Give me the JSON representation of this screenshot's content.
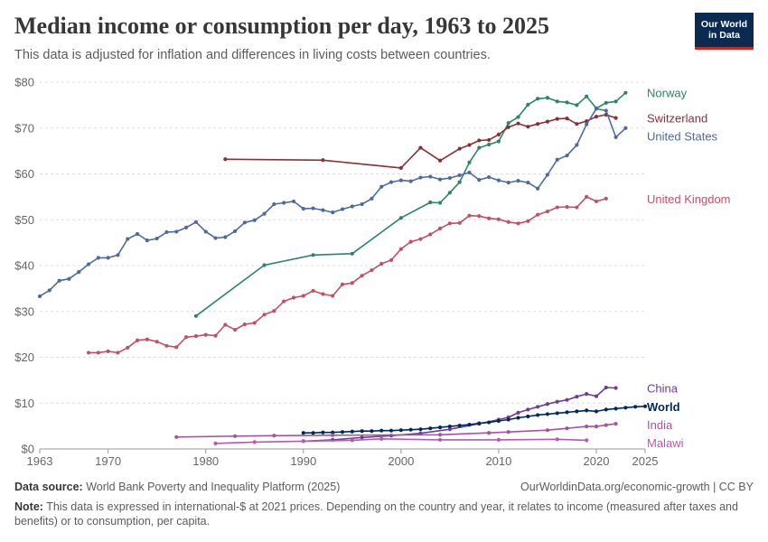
{
  "header": {
    "title": "Median income or consumption per day, 1963 to 2025",
    "subtitle": "This data is adjusted for inflation and differences in living costs between countries.",
    "logo_line1": "Our World",
    "logo_line2": "in Data"
  },
  "footer": {
    "source_label": "Data source:",
    "source_text": "World Bank Poverty and Inequality Platform (2025)",
    "url_text": "OurWorldinData.org/economic-growth | CC BY",
    "note_label": "Note:",
    "note_text": "This data is expressed in international-$ at 2021 prices. Depending on the country and year, it relates to income (measured after taxes and benefits) or to consumption, per capita."
  },
  "chart_data": {
    "type": "line",
    "xlim": [
      1963,
      2025
    ],
    "ylim": [
      0,
      80
    ],
    "x_ticks": [
      1963,
      1970,
      1980,
      1990,
      2000,
      2010,
      2020,
      2025
    ],
    "y_ticks": [
      0,
      10,
      20,
      30,
      40,
      50,
      60,
      70,
      80
    ],
    "y_tick_labels": [
      "$0",
      "$10",
      "$20",
      "$30",
      "$40",
      "$50",
      "$60",
      "$70",
      "$80"
    ],
    "grid": "horizontal-dashed",
    "series": [
      {
        "name": "Norway",
        "color": "#2c8465",
        "x": [
          1979,
          1986,
          1991,
          1995,
          2000,
          2003,
          2004,
          2005,
          2006,
          2007,
          2008,
          2009,
          2010,
          2011,
          2012,
          2013,
          2014,
          2015,
          2016,
          2017,
          2018,
          2019,
          2020,
          2021,
          2022,
          2023
        ],
        "y": [
          29.0,
          40.1,
          42.3,
          42.6,
          50.4,
          53.8,
          53.7,
          55.9,
          58.2,
          62.5,
          65.7,
          66.4,
          67.1,
          71.1,
          72.4,
          75.1,
          76.4,
          76.6,
          75.8,
          75.6,
          75.0,
          76.9,
          74.3,
          75.5,
          75.8,
          77.7
        ]
      },
      {
        "name": "Switzerland",
        "color": "#883039",
        "x": [
          1982,
          1992,
          2000,
          2002,
          2004,
          2006,
          2007,
          2008,
          2009,
          2010,
          2011,
          2012,
          2013,
          2014,
          2015,
          2016,
          2017,
          2018,
          2019,
          2020,
          2021,
          2022
        ],
        "y": [
          63.2,
          63.0,
          61.3,
          65.7,
          62.9,
          65.5,
          66.3,
          67.3,
          67.4,
          68.6,
          70.2,
          71.0,
          70.3,
          70.9,
          71.4,
          72.0,
          72.1,
          70.9,
          71.5,
          72.5,
          72.9,
          72.2
        ]
      },
      {
        "name": "United States",
        "color": "#4c6a9c",
        "x": [
          1963,
          1964,
          1965,
          1966,
          1967,
          1968,
          1969,
          1970,
          1971,
          1972,
          1973,
          1974,
          1975,
          1976,
          1977,
          1978,
          1979,
          1980,
          1981,
          1982,
          1983,
          1984,
          1985,
          1986,
          1987,
          1988,
          1989,
          1990,
          1991,
          1992,
          1993,
          1994,
          1995,
          1996,
          1997,
          1998,
          1999,
          2000,
          2001,
          2002,
          2003,
          2004,
          2005,
          2006,
          2007,
          2008,
          2009,
          2010,
          2011,
          2012,
          2013,
          2014,
          2015,
          2016,
          2017,
          2018,
          2019,
          2020,
          2021,
          2022,
          2023
        ],
        "y": [
          33.3,
          34.6,
          36.7,
          37.1,
          38.6,
          40.3,
          41.7,
          41.7,
          42.3,
          45.8,
          46.9,
          45.5,
          45.9,
          47.3,
          47.4,
          48.3,
          49.5,
          47.4,
          46.0,
          46.2,
          47.5,
          49.4,
          49.9,
          51.3,
          53.4,
          53.7,
          54.0,
          52.4,
          52.5,
          52.1,
          51.6,
          52.3,
          52.9,
          53.4,
          54.6,
          57.2,
          58.2,
          58.6,
          58.4,
          59.2,
          59.4,
          58.8,
          59.1,
          59.7,
          60.3,
          58.7,
          59.3,
          58.6,
          58.1,
          58.5,
          58.1,
          56.8,
          59.8,
          63.1,
          64.0,
          66.3,
          70.8,
          74.2,
          73.8,
          68.0,
          70.0
        ]
      },
      {
        "name": "United Kingdom",
        "color": "#c15065",
        "x": [
          1968,
          1969,
          1970,
          1971,
          1972,
          1973,
          1974,
          1975,
          1976,
          1977,
          1978,
          1979,
          1980,
          1981,
          1982,
          1983,
          1984,
          1985,
          1986,
          1987,
          1988,
          1989,
          1990,
          1991,
          1992,
          1993,
          1994,
          1995,
          1996,
          1997,
          1998,
          1999,
          2000,
          2001,
          2002,
          2003,
          2004,
          2005,
          2006,
          2007,
          2008,
          2009,
          2010,
          2011,
          2012,
          2013,
          2014,
          2015,
          2016,
          2017,
          2018,
          2019,
          2020,
          2021
        ],
        "y": [
          21.0,
          21.0,
          21.3,
          21.0,
          22.1,
          23.7,
          23.9,
          23.4,
          22.5,
          22.2,
          24.4,
          24.6,
          24.9,
          24.7,
          27.1,
          26.0,
          27.2,
          27.5,
          29.3,
          30.1,
          32.2,
          33.0,
          33.4,
          34.5,
          33.8,
          33.4,
          35.9,
          36.2,
          37.8,
          39.0,
          40.4,
          41.2,
          43.6,
          45.2,
          45.8,
          46.8,
          48.1,
          49.2,
          49.3,
          50.9,
          50.8,
          50.3,
          50.1,
          49.5,
          49.2,
          49.7,
          51.1,
          51.8,
          52.7,
          52.8,
          52.7,
          55.0,
          54.0,
          54.6
        ]
      },
      {
        "name": "China",
        "color": "#6d3e91",
        "x": [
          1990,
          1993,
          1996,
          1999,
          2002,
          2005,
          2008,
          2010,
          2011,
          2012,
          2013,
          2014,
          2015,
          2016,
          2017,
          2018,
          2019,
          2020,
          2021,
          2022
        ],
        "y": [
          1.7,
          2.0,
          2.5,
          2.9,
          3.4,
          4.3,
          5.5,
          6.4,
          6.9,
          7.9,
          8.6,
          9.2,
          9.8,
          10.3,
          10.7,
          11.4,
          12.0,
          11.5,
          13.4,
          13.3
        ]
      },
      {
        "name": "World",
        "color": "#00295b",
        "x": [
          1990,
          1991,
          1992,
          1993,
          1994,
          1995,
          1996,
          1997,
          1998,
          1999,
          2000,
          2001,
          2002,
          2003,
          2004,
          2005,
          2006,
          2007,
          2008,
          2009,
          2010,
          2011,
          2012,
          2013,
          2014,
          2015,
          2016,
          2017,
          2018,
          2019,
          2020,
          2021,
          2022,
          2023,
          2024,
          2025
        ],
        "y": [
          3.5,
          3.5,
          3.6,
          3.6,
          3.7,
          3.8,
          3.9,
          3.9,
          4.0,
          4.0,
          4.1,
          4.2,
          4.3,
          4.5,
          4.7,
          4.9,
          5.1,
          5.3,
          5.6,
          5.8,
          6.1,
          6.4,
          6.8,
          7.1,
          7.4,
          7.6,
          7.8,
          8.0,
          8.2,
          8.4,
          8.2,
          8.6,
          8.8,
          9.0,
          9.2,
          9.3
        ]
      },
      {
        "name": "India",
        "color": "#a2559c",
        "x": [
          1977,
          1983,
          1987,
          1993,
          2004,
          2009,
          2011,
          2015,
          2017,
          2019,
          2020,
          2021,
          2022
        ],
        "y": [
          2.6,
          2.8,
          2.9,
          3.0,
          3.1,
          3.5,
          3.7,
          4.1,
          4.5,
          4.9,
          4.9,
          5.2,
          5.5
        ]
      },
      {
        "name": "Malawi",
        "color": "#b45ab0",
        "x": [
          1981,
          1985,
          1990,
          1995,
          1998,
          2004,
          2010,
          2016,
          2019
        ],
        "y": [
          1.2,
          1.5,
          1.7,
          1.9,
          2.2,
          2.0,
          2.0,
          2.1,
          1.9
        ]
      }
    ]
  }
}
